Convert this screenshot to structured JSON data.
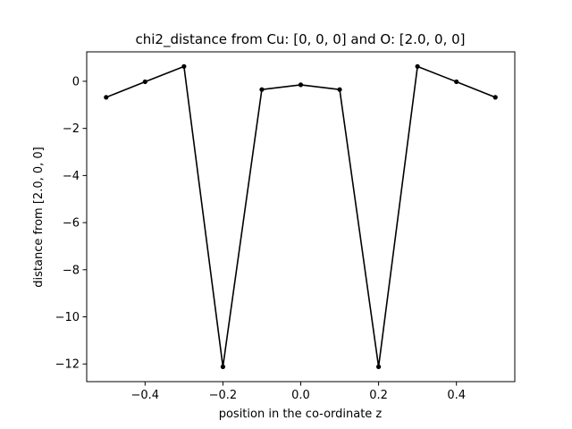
{
  "chart_data": {
    "type": "line",
    "title": "chi2_distance from Cu: [0, 0, 0] and O: [2.0, 0, 0]",
    "xlabel": "position in the co-ordinate z",
    "ylabel": "distance from [2.0, 0, 0]",
    "xlim": [
      -0.55,
      0.55
    ],
    "ylim": [
      -12.75,
      1.25
    ],
    "xticks": [
      -0.4,
      -0.2,
      0.0,
      0.2,
      0.4
    ],
    "xtick_labels": [
      "−0.4",
      "−0.2",
      "0.0",
      "0.2",
      "0.4"
    ],
    "yticks": [
      0,
      -2,
      -4,
      -6,
      -8,
      -10,
      -12
    ],
    "ytick_labels": [
      "0",
      "−2",
      "−4",
      "−6",
      "−8",
      "−10",
      "−12"
    ],
    "grid": false,
    "series": [
      {
        "color": "#000000",
        "marker": "circle",
        "x": [
          -0.5,
          -0.4,
          -0.3,
          -0.2,
          -0.1,
          0.0,
          0.1,
          0.2,
          0.3,
          0.4,
          0.5
        ],
        "y": [
          -0.68,
          -0.02,
          0.63,
          -12.12,
          -0.35,
          -0.15,
          -0.35,
          -12.12,
          0.63,
          -0.02,
          -0.68
        ]
      }
    ]
  }
}
